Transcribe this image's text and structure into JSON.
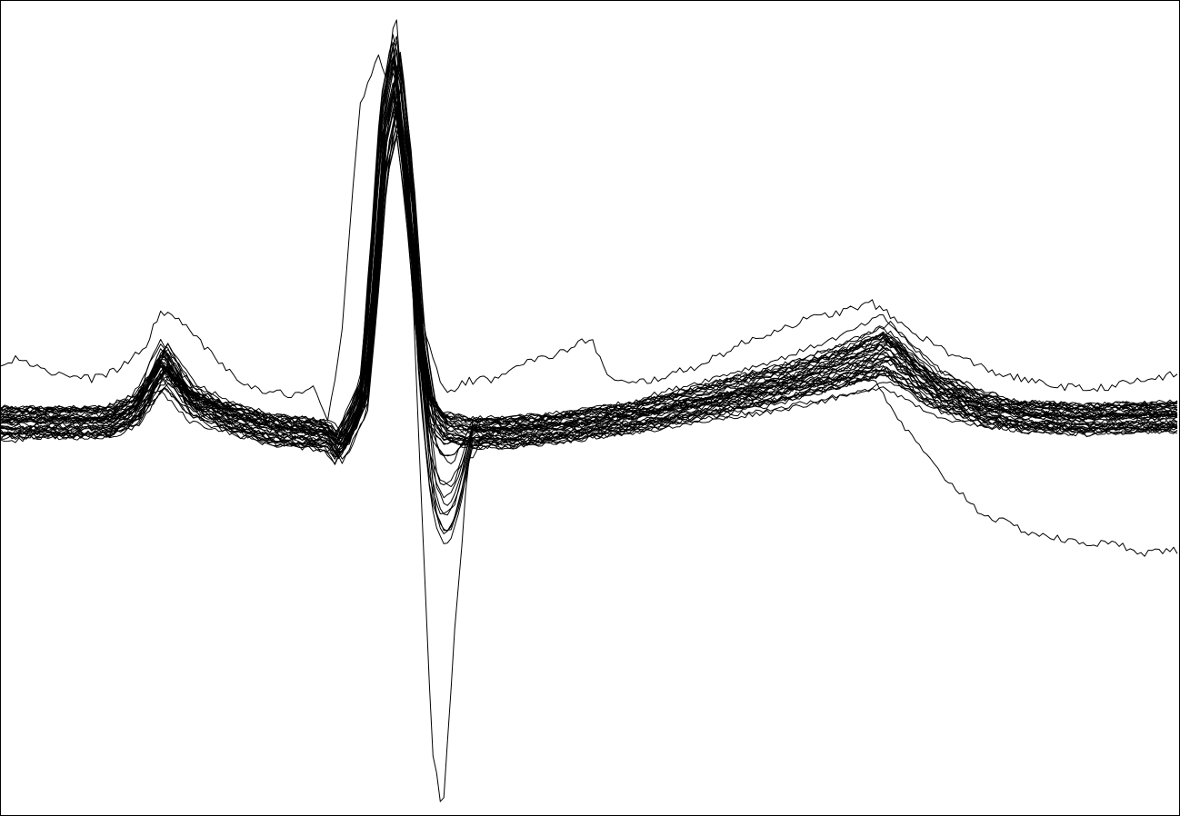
{
  "chart_data": {
    "type": "line",
    "title": "",
    "xlabel": "",
    "ylabel": "",
    "xlim": [
      0,
      1298
    ],
    "ylim": [
      -1.5,
      1.6
    ],
    "grid": false,
    "legend": "none",
    "line_color": "#000000",
    "series_count": 42,
    "mean_beat": {
      "x": [
        0,
        60,
        120,
        150,
        180,
        210,
        250,
        300,
        360,
        372,
        385,
        400,
        412,
        422,
        436,
        450,
        462,
        475,
        490,
        505,
        520,
        560,
        620,
        700,
        780,
        860,
        930,
        975,
        1030,
        1080,
        1130,
        1200,
        1298
      ],
      "y": [
        0.0,
        0.0,
        0.0,
        0.05,
        0.22,
        0.08,
        0.02,
        -0.03,
        -0.05,
        -0.1,
        -0.02,
        0.1,
        0.6,
        1.1,
        1.35,
        0.9,
        0.35,
        0.05,
        -0.02,
        -0.03,
        -0.04,
        -0.04,
        -0.02,
        0.02,
        0.08,
        0.14,
        0.21,
        0.27,
        0.12,
        0.05,
        0.02,
        0.01,
        0.02
      ]
    },
    "outlier_beats": [
      {
        "x": [
          0,
          20,
          60,
          100,
          130,
          160,
          175,
          200,
          240,
          280,
          320,
          345,
          360,
          375,
          395,
          415,
          425,
          435,
          445,
          455,
          470,
          490,
          510,
          540,
          570,
          600,
          630,
          650,
          670,
          690,
          720,
          760,
          820,
          880,
          930,
          960,
          1000,
          1050,
          1100,
          1150,
          1200,
          1250,
          1298
        ],
        "y": [
          0.22,
          0.24,
          0.18,
          0.16,
          0.2,
          0.28,
          0.42,
          0.38,
          0.22,
          0.12,
          0.1,
          0.12,
          0.0,
          0.3,
          1.2,
          1.4,
          1.3,
          1.58,
          1.1,
          0.6,
          0.3,
          0.1,
          0.15,
          0.16,
          0.22,
          0.24,
          0.28,
          0.32,
          0.16,
          0.14,
          0.16,
          0.2,
          0.3,
          0.38,
          0.42,
          0.45,
          0.35,
          0.25,
          0.18,
          0.14,
          0.12,
          0.15,
          0.18
        ]
      },
      {
        "x": [
          0,
          40,
          80,
          120,
          150,
          175,
          200,
          240,
          300,
          350,
          370,
          390,
          410,
          425,
          438,
          450,
          462,
          475,
          487,
          500,
          515,
          535,
          580,
          650,
          750,
          850,
          920,
          960,
          990,
          1030,
          1080,
          1130,
          1180,
          1230,
          1260,
          1298
        ],
        "y": [
          -0.08,
          -0.06,
          -0.06,
          -0.05,
          0.08,
          0.32,
          0.18,
          0.05,
          -0.01,
          -0.04,
          -0.1,
          0.05,
          0.3,
          0.9,
          1.3,
          0.8,
          -0.2,
          -1.25,
          -1.5,
          -0.8,
          -0.15,
          -0.05,
          -0.05,
          -0.02,
          0.06,
          0.13,
          0.17,
          0.16,
          0.0,
          -0.18,
          -0.35,
          -0.42,
          -0.46,
          -0.47,
          -0.5,
          -0.49
        ]
      }
    ]
  }
}
